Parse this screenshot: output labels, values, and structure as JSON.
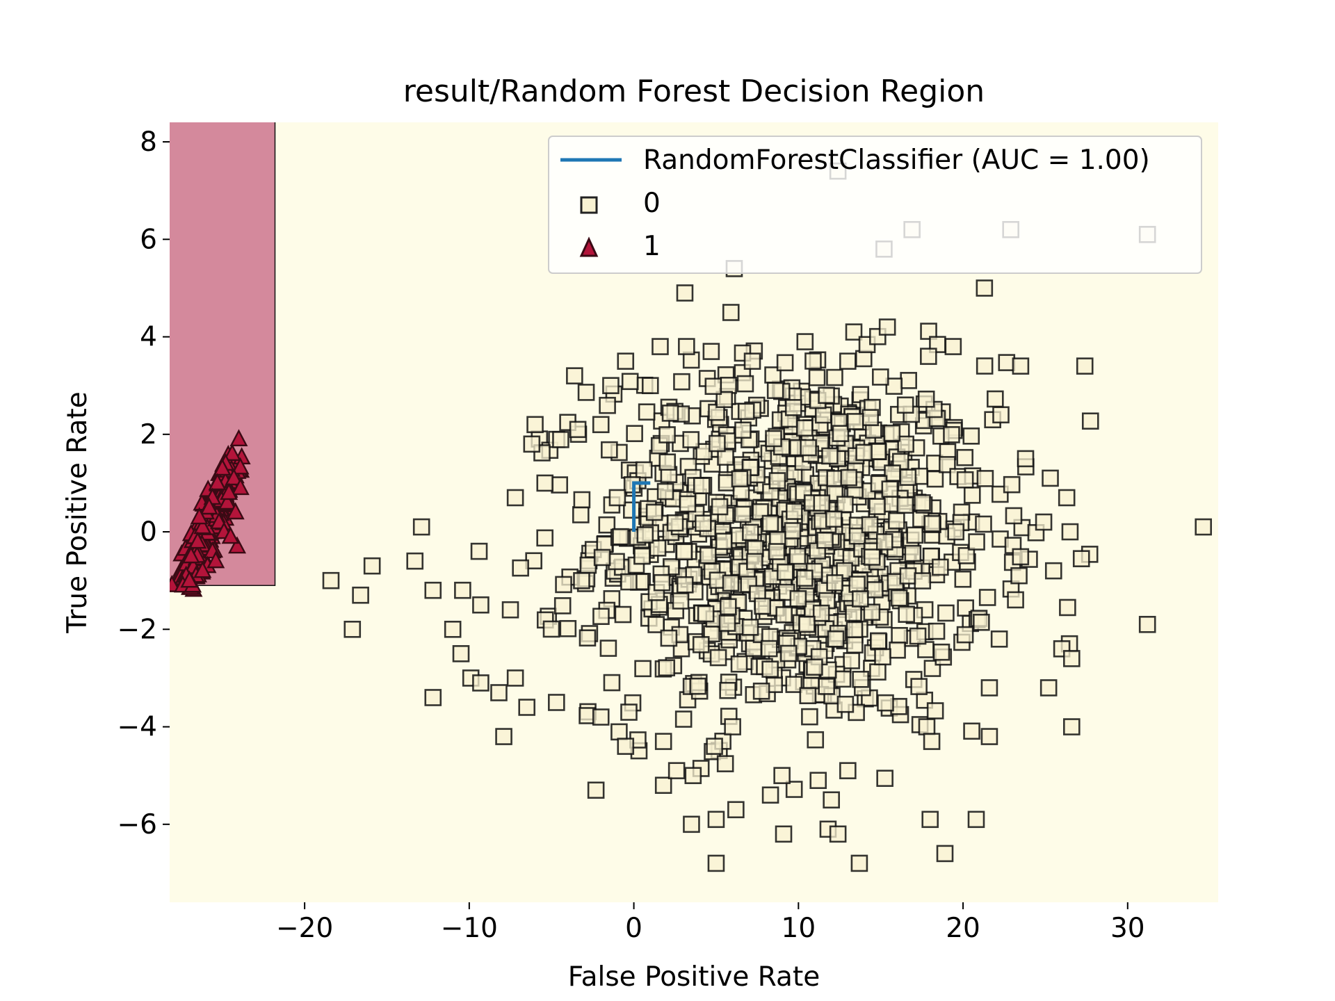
{
  "chart_data": {
    "type": "scatter",
    "title": "result/Random Forest Decision Region",
    "xlabel": "False Positive Rate",
    "ylabel": "True Positive Rate",
    "xlim": [
      -28.2,
      35.5
    ],
    "ylim": [
      -7.6,
      8.4
    ],
    "xticks": [
      -20,
      -10,
      0,
      10,
      20,
      30
    ],
    "yticks": [
      -6,
      -4,
      -2,
      0,
      2,
      4,
      6,
      8
    ],
    "grid": false,
    "legend_position": "top-right",
    "colors": {
      "region_0": "#fefce8",
      "region_1": "#d4899c",
      "marker_0_fill": "#f8f2d2",
      "marker_1_fill": "#b3143a",
      "roc": "#1f77b4"
    },
    "regions": [
      {
        "class": "1",
        "x": [
          -28.2,
          -21.8
        ],
        "y": [
          -1.1,
          8.4
        ]
      },
      {
        "class": "0",
        "x": [
          -21.8,
          35.5
        ],
        "y": [
          -7.6,
          8.4
        ]
      },
      {
        "class": "0",
        "x": [
          -28.2,
          -21.8
        ],
        "y": [
          -7.6,
          -1.1
        ]
      }
    ],
    "roc_curve": {
      "name": "RandomForestClassifier (AUC = 1.00)",
      "x": [
        0.0,
        0.0,
        1.0
      ],
      "y": [
        0.0,
        1.0,
        1.0
      ]
    },
    "series": [
      {
        "name": "0",
        "marker": "square",
        "points": [
          [
            12.4,
            7.4
          ],
          [
            16.9,
            6.2
          ],
          [
            22.9,
            6.2
          ],
          [
            31.2,
            6.1
          ],
          [
            15.2,
            5.8
          ],
          [
            6.1,
            5.4
          ],
          [
            21.3,
            5.0
          ],
          [
            3.1,
            4.9
          ],
          [
            5.9,
            4.5
          ],
          [
            15.4,
            4.2
          ],
          [
            10.4,
            3.9
          ],
          [
            19.4,
            3.8
          ],
          [
            1.6,
            3.8
          ],
          [
            3.2,
            3.8
          ],
          [
            4.7,
            3.7
          ],
          [
            17.9,
            3.6
          ],
          [
            -0.5,
            3.5
          ],
          [
            7.2,
            3.5
          ],
          [
            13.0,
            3.5
          ],
          [
            23.5,
            3.4
          ],
          [
            27.4,
            3.4
          ],
          [
            -3.6,
            3.2
          ],
          [
            -1.4,
            3.0
          ],
          [
            1.0,
            3.0
          ],
          [
            8.6,
            2.9
          ],
          [
            11.7,
            2.8
          ],
          [
            16.5,
            2.6
          ],
          [
            -6.0,
            2.2
          ],
          [
            -2.0,
            2.2
          ],
          [
            -3.4,
            2.1
          ],
          [
            21.8,
            2.3
          ],
          [
            22.3,
            2.4
          ],
          [
            -6.2,
            1.8
          ],
          [
            23.8,
            1.5
          ],
          [
            -5.4,
            1.0
          ],
          [
            25.3,
            1.1
          ],
          [
            -7.2,
            0.7
          ],
          [
            26.3,
            0.7
          ],
          [
            -12.9,
            0.1
          ],
          [
            34.6,
            0.1
          ],
          [
            26.5,
            0.0
          ],
          [
            24.9,
            0.2
          ],
          [
            -13.3,
            -0.6
          ],
          [
            -15.9,
            -0.7
          ],
          [
            -9.4,
            -0.4
          ],
          [
            25.5,
            -0.8
          ],
          [
            23.4,
            -0.9
          ],
          [
            -18.4,
            -1.0
          ],
          [
            -16.6,
            -1.3
          ],
          [
            -12.2,
            -1.2
          ],
          [
            -10.4,
            -1.2
          ],
          [
            -9.3,
            -1.5
          ],
          [
            -7.5,
            -1.6
          ],
          [
            31.2,
            -1.9
          ],
          [
            -17.1,
            -2.0
          ],
          [
            -11.0,
            -2.0
          ],
          [
            -10.5,
            -2.5
          ],
          [
            26.0,
            -2.4
          ],
          [
            26.6,
            -2.6
          ],
          [
            22.2,
            -2.2
          ],
          [
            -9.9,
            -3.0
          ],
          [
            -9.3,
            -3.1
          ],
          [
            -8.2,
            -3.3
          ],
          [
            -12.2,
            -3.4
          ],
          [
            -7.2,
            -3.0
          ],
          [
            25.2,
            -3.2
          ],
          [
            21.6,
            -3.2
          ],
          [
            -4.7,
            -3.5
          ],
          [
            -6.5,
            -3.6
          ],
          [
            -2.0,
            -3.8
          ],
          [
            -0.3,
            -3.7
          ],
          [
            26.6,
            -4.0
          ],
          [
            -7.9,
            -4.2
          ],
          [
            -0.5,
            -4.4
          ],
          [
            17.8,
            -4.0
          ],
          [
            18.1,
            -4.3
          ],
          [
            21.6,
            -4.2
          ],
          [
            -2.3,
            -5.3
          ],
          [
            9.0,
            -5.0
          ],
          [
            11.2,
            -5.1
          ],
          [
            8.3,
            -5.4
          ],
          [
            12.0,
            -5.5
          ],
          [
            3.5,
            -6.0
          ],
          [
            5.0,
            -5.9
          ],
          [
            6.2,
            -5.7
          ],
          [
            11.8,
            -6.1
          ],
          [
            9.1,
            -6.2
          ],
          [
            18.0,
            -5.9
          ],
          [
            20.8,
            -5.9
          ],
          [
            18.9,
            -6.6
          ],
          [
            5.0,
            -6.8
          ],
          [
            13.7,
            -6.8
          ],
          [
            12.4,
            -6.2
          ],
          [
            1.8,
            -5.2
          ],
          [
            3.6,
            -5.0
          ],
          [
            2.6,
            -4.9
          ],
          [
            1.8,
            -4.3
          ],
          [
            4.9,
            -4.4
          ],
          [
            6.0,
            -4.0
          ],
          [
            13.0,
            -4.9
          ],
          [
            -1.0,
            0.7
          ],
          [
            0.5,
            -0.5
          ]
        ],
        "bulk_cloud": {
          "center": [
            9.7,
            -0.2
          ],
          "std": [
            6.0,
            1.85
          ],
          "count": 1000
        }
      },
      {
        "name": "1",
        "marker": "triangle",
        "points": [
          [
            -24.0,
            1.9
          ],
          [
            -24.4,
            1.6
          ],
          [
            -24.8,
            1.4
          ],
          [
            -25.0,
            1.3
          ],
          [
            -24.3,
            1.1
          ],
          [
            -25.3,
            1.0
          ],
          [
            -23.9,
            0.9
          ],
          [
            -25.6,
            0.7
          ],
          [
            -24.7,
            0.6
          ],
          [
            -26.0,
            0.4
          ],
          [
            -24.2,
            0.4
          ],
          [
            -25.2,
            0.2
          ],
          [
            -26.2,
            0.1
          ],
          [
            -24.9,
            0.0
          ],
          [
            -24.1,
            -0.3
          ],
          [
            -26.5,
            -0.2
          ],
          [
            -25.6,
            -0.4
          ],
          [
            -26.9,
            -0.5
          ],
          [
            -25.9,
            -0.7
          ],
          [
            -27.2,
            -0.9
          ],
          [
            -26.6,
            -0.9
          ],
          [
            -26.2,
            -0.8
          ],
          [
            -27.4,
            -1.1
          ],
          [
            -26.8,
            -1.1
          ],
          [
            -27.0,
            -1.0
          ],
          [
            -25.4,
            -0.6
          ],
          [
            -24.6,
            0.8
          ],
          [
            -25.8,
            0.5
          ],
          [
            -24.5,
            -0.1
          ],
          [
            -26.4,
            0.3
          ]
        ],
        "bulk_cloud": {
          "line_start": [
            -27.3,
            -1.1
          ],
          "line_end": [
            -24.3,
            1.4
          ],
          "count": 260
        }
      }
    ]
  }
}
